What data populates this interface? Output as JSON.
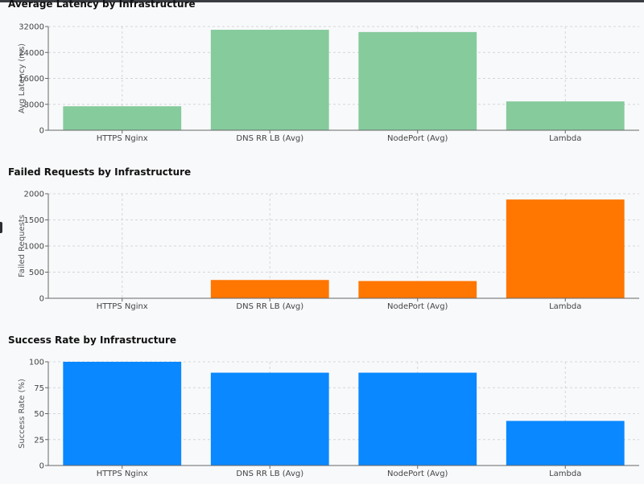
{
  "chart_data": [
    {
      "type": "bar",
      "title": "Average Latency by Infrastructure",
      "xlabel": "",
      "ylabel": "Avg Latency (ms)",
      "categories": [
        "HTTPS Nginx",
        "DNS RR LB (Avg)",
        "NodePort (Avg)",
        "Lambda"
      ],
      "values": [
        7400,
        31000,
        30300,
        8900
      ],
      "ylim": [
        0,
        32000
      ],
      "yticks": [
        0,
        8000,
        16000,
        24000,
        32000
      ],
      "color": "#86cb9c",
      "grid": true
    },
    {
      "type": "bar",
      "title": "Failed Requests by Infrastructure",
      "xlabel": "",
      "ylabel": "Failed Requests",
      "categories": [
        "HTTPS Nginx",
        "DNS RR LB (Avg)",
        "NodePort (Avg)",
        "Lambda"
      ],
      "values": [
        0,
        350,
        330,
        1890
      ],
      "ylim": [
        0,
        2000
      ],
      "yticks": [
        0,
        500,
        1000,
        1500,
        2000
      ],
      "color": "#ff7600",
      "grid": true
    },
    {
      "type": "bar",
      "title": "Success Rate by Infrastructure",
      "xlabel": "",
      "ylabel": "Success Rate (%)",
      "categories": [
        "HTTPS Nginx",
        "DNS RR LB (Avg)",
        "NodePort (Avg)",
        "Lambda"
      ],
      "values": [
        100,
        89.5,
        89.5,
        43
      ],
      "ylim": [
        0,
        100
      ],
      "yticks": [
        0,
        25,
        50,
        75,
        100
      ],
      "color": "#0a88ff",
      "grid": true
    }
  ]
}
